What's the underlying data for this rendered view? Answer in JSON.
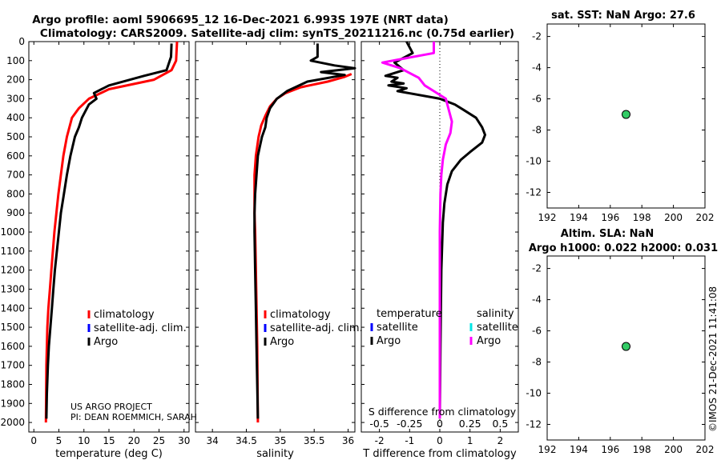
{
  "title_line1": "Argo profile: aoml 5906695_12 16-Dec-2021 6.993S 197E (NRT data)",
  "title_line2": "Climatology: CARS2009. Satellite-adj clim: synTS_20211216.nc (0.75d earlier)",
  "side_text": "©IMOS 21-Dec-2021 11:41:08",
  "project_line1": "US ARGO PROJECT",
  "project_line2": "PI: DEAN ROEMMICH, SARAH",
  "depth_ticks": [
    0,
    100,
    200,
    300,
    400,
    500,
    600,
    700,
    800,
    900,
    1000,
    1100,
    1200,
    1300,
    1400,
    1500,
    1600,
    1700,
    1800,
    1900,
    2000
  ],
  "depth_range": [
    0,
    2050
  ],
  "colors": {
    "climatology": "#ff0000",
    "satellite": "#0000ff",
    "argo": "#000000",
    "sal_sat": "#00e5e5",
    "sal_argo": "#ff00ff",
    "dot": "#33cc66"
  },
  "chart_data": [
    {
      "type": "line",
      "name": "temperature",
      "xlabel": "temperature (deg C)",
      "xlim": [
        -1,
        31
      ],
      "xticks": [
        0,
        5,
        10,
        15,
        20,
        25,
        30
      ],
      "legend": [
        "climatology",
        "satellite-adj. clim.",
        "Argo"
      ],
      "series": [
        {
          "name": "climatology",
          "color": "#ff0000",
          "x": [
            28.6,
            28.5,
            28.4,
            27.5,
            24,
            15,
            11,
            9,
            7.6,
            6.6,
            5.9,
            5.4,
            4.9,
            4.5,
            4.1,
            3.8,
            3.5,
            3.2,
            2.9,
            2.7,
            2.5,
            2.4
          ],
          "y": [
            0,
            50,
            100,
            150,
            200,
            250,
            300,
            350,
            400,
            500,
            600,
            700,
            800,
            900,
            1000,
            1100,
            1200,
            1300,
            1400,
            1500,
            1700,
            2000
          ]
        },
        {
          "name": "Argo",
          "color": "#000000",
          "x": [
            27.5,
            27.4,
            26.5,
            22,
            15,
            12,
            12.5,
            11,
            9.6,
            9,
            8.2,
            7.3,
            6.6,
            6,
            5.4,
            5,
            4.6,
            4.2,
            3.9,
            3.6,
            3.3,
            3,
            2.8,
            2.6,
            2.5
          ],
          "y": [
            10,
            80,
            150,
            180,
            230,
            270,
            300,
            330,
            400,
            450,
            500,
            600,
            700,
            800,
            900,
            1000,
            1100,
            1200,
            1300,
            1400,
            1500,
            1600,
            1700,
            1850,
            1980
          ]
        }
      ]
    },
    {
      "type": "line",
      "name": "salinity",
      "xlabel": "salinity",
      "xlim": [
        33.75,
        36.1
      ],
      "xticks": [
        34,
        34.5,
        35,
        35.5,
        36
      ],
      "xticklabels": [
        "34",
        "34.5",
        "35",
        "35.5",
        "36"
      ],
      "legend": [
        "climatology",
        "satellite-adj. clim.",
        "Argo"
      ],
      "series": [
        {
          "name": "climatology",
          "color": "#ff0000",
          "x": [
            36.05,
            35.95,
            35.7,
            35.3,
            35.08,
            34.95,
            34.85,
            34.78,
            34.72,
            34.68,
            34.64,
            34.62,
            34.62,
            34.62,
            34.63,
            34.64,
            34.66,
            34.67
          ],
          "y": [
            170,
            185,
            210,
            240,
            270,
            300,
            340,
            390,
            440,
            500,
            600,
            700,
            800,
            900,
            1000,
            1200,
            1600,
            2000
          ]
        },
        {
          "name": "Argo",
          "color": "#000000",
          "x": [
            35.55,
            35.55,
            35.45,
            35.8,
            36.1,
            35.6,
            35.95,
            35.4,
            35.1,
            34.95,
            34.85,
            34.8,
            34.78,
            34.73,
            34.7,
            34.67,
            34.65,
            34.63,
            34.62,
            34.62,
            34.63,
            34.64,
            34.65,
            34.66,
            34.67
          ],
          "y": [
            10,
            80,
            100,
            125,
            140,
            160,
            175,
            210,
            260,
            300,
            350,
            400,
            450,
            500,
            550,
            600,
            700,
            800,
            900,
            1000,
            1200,
            1400,
            1600,
            1800,
            1980
          ]
        }
      ]
    },
    {
      "type": "line",
      "name": "difference",
      "xlabel": "T difference from climatology",
      "xlim": [
        -2.6,
        2.6
      ],
      "xticks": [
        -2,
        -1,
        0,
        1,
        2
      ],
      "sub_label": "S difference from climatology",
      "sub_ticks": [
        "-0.5",
        "-0.25",
        "0",
        "0.25",
        "0.5"
      ],
      "legend_headers": [
        "temperature",
        "salinity"
      ],
      "legend_left": [
        "satellite",
        "Argo"
      ],
      "legend_right": [
        "satellite",
        "Argo"
      ],
      "series": [
        {
          "name": "T Argo",
          "color": "#000000",
          "x": [
            -1.1,
            -0.9,
            -1.5,
            -1.2,
            -1.8,
            -1.4,
            -1.6,
            -1.2,
            -1.7,
            -1.1,
            -1.4,
            0,
            0.5,
            0.8,
            1.2,
            1.4,
            1.5,
            1.4,
            1.0,
            0.7,
            0.4,
            0.25,
            0.15,
            0.1,
            0.05,
            0.02,
            0
          ],
          "y": [
            0,
            60,
            110,
            150,
            180,
            190,
            210,
            220,
            230,
            245,
            260,
            300,
            330,
            360,
            400,
            450,
            490,
            530,
            580,
            620,
            680,
            750,
            850,
            950,
            1200,
            1600,
            1980
          ]
        },
        {
          "name": "S Argo",
          "color": "#ff00ff",
          "x": [
            -0.2,
            -0.2,
            -1.9,
            -1.3,
            -0.7,
            -0.5,
            -0.2,
            0.2,
            0.3,
            0.4,
            0.35,
            0.2,
            0.1,
            0.05,
            0.02,
            0,
            0,
            0
          ],
          "y": [
            0,
            60,
            110,
            140,
            190,
            230,
            260,
            300,
            360,
            420,
            480,
            540,
            620,
            700,
            800,
            1000,
            1500,
            1980
          ]
        }
      ]
    },
    {
      "type": "scatter",
      "name": "sst_map",
      "title": "sat. SST: NaN Argo: 27.6",
      "xlim": [
        192,
        202
      ],
      "ylim": [
        -13,
        -1.2
      ],
      "xticks": [
        192,
        194,
        196,
        198,
        200,
        202
      ],
      "yticks": [
        -12,
        -10,
        -8,
        -6,
        -4,
        -2
      ],
      "points": [
        {
          "x": 197,
          "y": -7
        }
      ]
    },
    {
      "type": "scatter",
      "name": "sla_map",
      "title": "Altim. SLA: NaN",
      "subtitle": "Argo h1000: 0.022 h2000: 0.031",
      "xlim": [
        192,
        202
      ],
      "ylim": [
        -13,
        -1.2
      ],
      "xticks": [
        192,
        194,
        196,
        198,
        200,
        202
      ],
      "yticks": [
        -12,
        -10,
        -8,
        -6,
        -4,
        -2
      ],
      "points": [
        {
          "x": 197,
          "y": -7
        }
      ]
    }
  ]
}
